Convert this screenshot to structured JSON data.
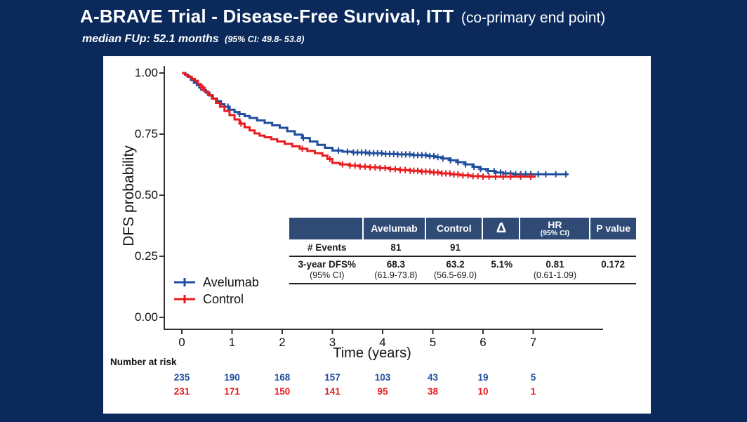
{
  "title": {
    "main": "A-BRAVE Trial - Disease-Free Survival, ITT",
    "paren": "(co-primary end point)"
  },
  "subtitle": {
    "main": "median FUp: 52.1 months",
    "ci": "(95% CI: 49.8- 53.8)"
  },
  "colors": {
    "background": "#0b2a5b",
    "panel": "#ffffff",
    "avelumab": "#1f4e9e",
    "control": "#e81c1f",
    "table_header_bg": "#2e4a75",
    "axis": "#333333"
  },
  "chart_data": {
    "type": "line",
    "subtype": "kaplan-meier-step",
    "xlabel": "Time (years)",
    "ylabel": "DFS probability",
    "xlim": [
      0,
      8.1
    ],
    "ylim": [
      0,
      1
    ],
    "xticks": [
      0,
      1,
      2,
      3,
      4,
      5,
      6,
      7
    ],
    "yticks": [
      1.0,
      0.75,
      0.5,
      0.25,
      0.0
    ],
    "ytick_labels": [
      "1.00",
      "0.75",
      "0.50",
      "0.25",
      "0.00"
    ],
    "grid": false,
    "legend_position": "inside-bottom-left",
    "series": [
      {
        "name": "Avelumab",
        "color": "#1f4e9e",
        "points": [
          [
            0,
            1.0
          ],
          [
            0.07,
            0.993
          ],
          [
            0.12,
            0.985
          ],
          [
            0.18,
            0.972
          ],
          [
            0.24,
            0.96
          ],
          [
            0.3,
            0.95
          ],
          [
            0.36,
            0.94
          ],
          [
            0.42,
            0.93
          ],
          [
            0.48,
            0.92
          ],
          [
            0.55,
            0.908
          ],
          [
            0.62,
            0.896
          ],
          [
            0.7,
            0.885
          ],
          [
            0.78,
            0.872
          ],
          [
            0.85,
            0.862
          ],
          [
            0.95,
            0.85
          ],
          [
            1.05,
            0.84
          ],
          [
            1.15,
            0.832
          ],
          [
            1.25,
            0.824
          ],
          [
            1.35,
            0.816
          ],
          [
            1.5,
            0.806
          ],
          [
            1.65,
            0.796
          ],
          [
            1.8,
            0.786
          ],
          [
            1.95,
            0.776
          ],
          [
            2.1,
            0.762
          ],
          [
            2.25,
            0.748
          ],
          [
            2.4,
            0.734
          ],
          [
            2.55,
            0.72
          ],
          [
            2.7,
            0.706
          ],
          [
            2.85,
            0.694
          ],
          [
            3.0,
            0.683
          ],
          [
            3.2,
            0.678
          ],
          [
            3.4,
            0.675
          ],
          [
            3.7,
            0.672
          ],
          [
            4.0,
            0.669
          ],
          [
            4.3,
            0.667
          ],
          [
            4.6,
            0.664
          ],
          [
            4.9,
            0.66
          ],
          [
            5.05,
            0.656
          ],
          [
            5.2,
            0.65
          ],
          [
            5.35,
            0.643
          ],
          [
            5.5,
            0.635
          ],
          [
            5.65,
            0.626
          ],
          [
            5.8,
            0.616
          ],
          [
            5.95,
            0.607
          ],
          [
            6.1,
            0.599
          ],
          [
            6.25,
            0.593
          ],
          [
            6.4,
            0.589
          ],
          [
            6.6,
            0.586
          ],
          [
            7.7,
            0.586
          ]
        ],
        "censor_times": [
          0.38,
          0.92,
          1.15,
          2.42,
          3.12,
          3.3,
          3.42,
          3.5,
          3.58,
          3.66,
          3.74,
          3.82,
          3.9,
          3.98,
          4.06,
          4.14,
          4.22,
          4.3,
          4.38,
          4.46,
          4.54,
          4.62,
          4.7,
          4.78,
          4.86,
          4.94,
          5.02,
          5.1,
          5.2,
          5.35,
          5.5,
          5.65,
          5.82,
          5.95,
          6.1,
          6.22,
          6.35,
          6.45,
          6.55,
          6.65,
          6.75,
          6.85,
          6.95,
          7.1,
          7.25,
          7.45,
          7.65
        ]
      },
      {
        "name": "Control",
        "color": "#e81c1f",
        "points": [
          [
            0,
            1.0
          ],
          [
            0.06,
            0.994
          ],
          [
            0.1,
            0.988
          ],
          [
            0.15,
            0.984
          ],
          [
            0.2,
            0.976
          ],
          [
            0.26,
            0.968
          ],
          [
            0.32,
            0.955
          ],
          [
            0.38,
            0.94
          ],
          [
            0.45,
            0.925
          ],
          [
            0.52,
            0.91
          ],
          [
            0.6,
            0.895
          ],
          [
            0.68,
            0.878
          ],
          [
            0.76,
            0.862
          ],
          [
            0.85,
            0.845
          ],
          [
            0.95,
            0.828
          ],
          [
            1.05,
            0.81
          ],
          [
            1.15,
            0.793
          ],
          [
            1.25,
            0.778
          ],
          [
            1.35,
            0.765
          ],
          [
            1.45,
            0.753
          ],
          [
            1.55,
            0.744
          ],
          [
            1.65,
            0.737
          ],
          [
            1.78,
            0.729
          ],
          [
            1.9,
            0.72
          ],
          [
            2.05,
            0.71
          ],
          [
            2.2,
            0.7
          ],
          [
            2.35,
            0.69
          ],
          [
            2.5,
            0.681
          ],
          [
            2.65,
            0.672
          ],
          [
            2.8,
            0.662
          ],
          [
            2.9,
            0.648
          ],
          [
            3.0,
            0.632
          ],
          [
            3.15,
            0.626
          ],
          [
            3.35,
            0.621
          ],
          [
            3.55,
            0.617
          ],
          [
            3.75,
            0.614
          ],
          [
            3.95,
            0.611
          ],
          [
            4.15,
            0.607
          ],
          [
            4.35,
            0.603
          ],
          [
            4.55,
            0.6
          ],
          [
            4.75,
            0.597
          ],
          [
            4.95,
            0.593
          ],
          [
            5.15,
            0.589
          ],
          [
            5.35,
            0.585
          ],
          [
            5.55,
            0.581
          ],
          [
            5.75,
            0.578
          ],
          [
            6.0,
            0.576
          ],
          [
            7.05,
            0.576
          ]
        ],
        "censor_times": [
          0.42,
          1.18,
          2.4,
          2.95,
          3.2,
          3.35,
          3.45,
          3.55,
          3.65,
          3.75,
          3.85,
          3.95,
          4.05,
          4.15,
          4.25,
          4.35,
          4.45,
          4.55,
          4.62,
          4.7,
          4.78,
          4.86,
          4.94,
          5.02,
          5.1,
          5.18,
          5.26,
          5.34,
          5.42,
          5.5,
          5.6,
          5.7,
          5.8,
          5.9,
          6.0,
          6.12,
          6.25,
          6.4,
          6.55,
          6.75,
          6.95
        ]
      }
    ]
  },
  "inset_table": {
    "header": {
      "col0": "",
      "col1": "Avelumab",
      "col2": "Control",
      "col3": "Δ",
      "col4_line1": "HR",
      "col4_line2": "(95% CI)",
      "col5": "P value"
    },
    "rows": {
      "events": {
        "label": "# Events",
        "avelumab": "81",
        "control": "91",
        "delta": "",
        "hr": "",
        "p": ""
      },
      "dfs": {
        "label": "3-year DFS%",
        "label_ci": "(95% CI)",
        "avelumab": "68.3",
        "avelumab_ci": "(61.9-73.8)",
        "control": "63.2",
        "control_ci": "(56.5-69.0)",
        "delta": "5.1%",
        "hr": "0.81",
        "hr_ci": "(0.61-1.09)",
        "p": "0.172"
      }
    }
  },
  "number_at_risk": {
    "label": "Number at risk",
    "rows": [
      {
        "name": "Avelumab",
        "color": "#1f4e9e",
        "values": [
          "235",
          "190",
          "168",
          "157",
          "103",
          "43",
          "19",
          "5"
        ]
      },
      {
        "name": "Control",
        "color": "#e81c1f",
        "values": [
          "231",
          "171",
          "150",
          "141",
          "95",
          "38",
          "10",
          "1"
        ]
      }
    ]
  }
}
